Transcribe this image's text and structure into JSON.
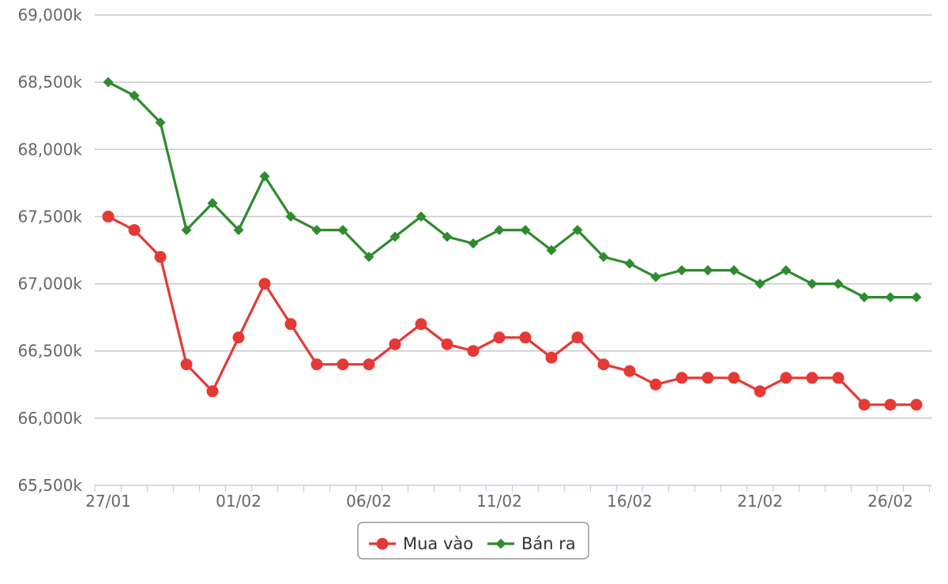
{
  "chart_data": {
    "type": "line",
    "title": "",
    "xlabel": "",
    "ylabel": "",
    "ylim": [
      65500,
      69000
    ],
    "y_ticks": [
      "65,500k",
      "66,000k",
      "66,500k",
      "67,000k",
      "67,500k",
      "68,000k",
      "68,500k",
      "69,000k"
    ],
    "x_tick_labels": [
      "27/01",
      "01/02",
      "06/02",
      "11/02",
      "16/02",
      "21/02",
      "26/02"
    ],
    "x": [
      "27/01",
      "28/01",
      "29/01",
      "30/01",
      "31/01",
      "01/02",
      "02/02",
      "03/02",
      "04/02",
      "05/02",
      "06/02",
      "07/02",
      "08/02",
      "09/02",
      "10/02",
      "11/02",
      "12/02",
      "13/02",
      "14/02",
      "15/02",
      "16/02",
      "17/02",
      "18/02",
      "19/02",
      "20/02",
      "21/02",
      "22/02",
      "23/02",
      "24/02",
      "25/02",
      "26/02",
      "27/02"
    ],
    "grid": true,
    "legend_position": "bottom-center",
    "series": [
      {
        "name": "Mua vào",
        "color": "#e53935",
        "marker": "circle",
        "values": [
          67500,
          67400,
          67200,
          66400,
          66200,
          66600,
          67000,
          66700,
          66400,
          66400,
          66400,
          66550,
          66700,
          66550,
          66500,
          66600,
          66600,
          66450,
          66600,
          66400,
          66350,
          66250,
          66300,
          66300,
          66300,
          66200,
          66300,
          66300,
          66300,
          66100,
          66100,
          66100
        ]
      },
      {
        "name": "Bán ra",
        "color": "#2e8b2e",
        "marker": "diamond",
        "values": [
          68500,
          68400,
          68200,
          67400,
          67600,
          67400,
          67800,
          67500,
          67400,
          67400,
          67200,
          67350,
          67500,
          67350,
          67300,
          67400,
          67400,
          67250,
          67400,
          67200,
          67150,
          67050,
          67100,
          67100,
          67100,
          67000,
          67100,
          67000,
          67000,
          66900,
          66900,
          66900
        ]
      }
    ]
  }
}
